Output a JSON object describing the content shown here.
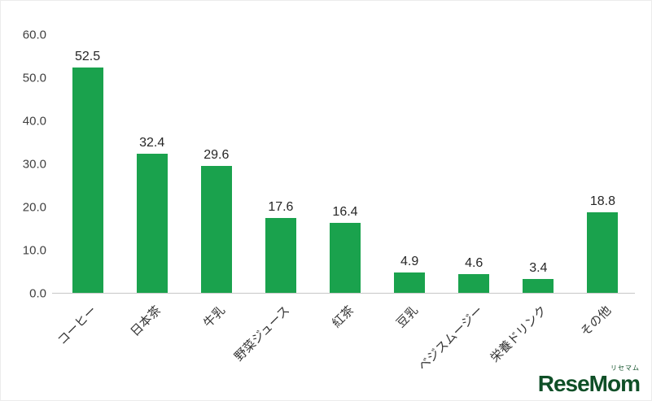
{
  "chart_data": {
    "type": "bar",
    "title": "",
    "xlabel": "",
    "ylabel": "",
    "categories": [
      "コーヒー",
      "日本茶",
      "牛乳",
      "野菜ジュース",
      "紅茶",
      "豆乳",
      "ベジスムージー",
      "栄養ドリンク",
      "その他"
    ],
    "values": [
      52.5,
      32.4,
      29.6,
      17.6,
      16.4,
      4.9,
      4.6,
      3.4,
      18.8
    ],
    "value_labels": [
      "52.5",
      "32.4",
      "29.6",
      "17.6",
      "16.4",
      "4.9",
      "4.6",
      "3.4",
      "18.8"
    ],
    "ylim": [
      0,
      60
    ],
    "yticks": [
      0,
      10,
      20,
      30,
      40,
      50,
      60
    ],
    "ytick_labels": [
      "0.0",
      "10.0",
      "20.0",
      "30.0",
      "40.0",
      "50.0",
      "60.0"
    ],
    "bar_color": "#1aa24d",
    "grid": false,
    "legend": false
  },
  "branding": {
    "logo_text": "ReseMom",
    "logo_ruby": "リセマム",
    "logo_color": "#0f4f27"
  }
}
